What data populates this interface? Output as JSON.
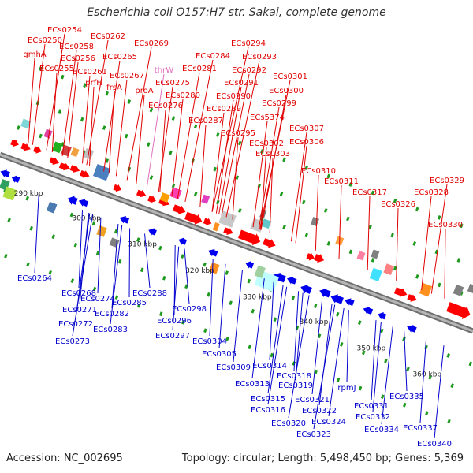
{
  "title": "Escherichia coli O157:H7 str. Sakai, complete genome",
  "footer": {
    "accession": "Accession: NC_002695",
    "summary": "Topology: circular; Length: 5,498,450 bp; Genes: 5,369"
  },
  "colors": {
    "forward_label": "#e00000",
    "reverse_label": "#0000cc",
    "trna_label": "#e070c0",
    "backbone": "#8c8c8c",
    "tick": "#1e9a1e",
    "forward_gene": "#ff0000",
    "reverse_gene": "#0000ee"
  },
  "kbp_ticks": [
    "290 kbp",
    "300 kbp",
    "310 kbp",
    "320 kbp",
    "330 kbp",
    "340 kbp",
    "350 kbp",
    "360 kbp"
  ],
  "forward_labels": [
    "ECs0254",
    "ECs0250",
    "ECs0258",
    "ECs0262",
    "ECs0269",
    "gmhA",
    "ECs0256",
    "ECs0265",
    "ECs0255",
    "ECs0261",
    "ECs0267",
    "thrW",
    "prfH",
    "frsA",
    "proA",
    "ECs0275",
    "ECs0276",
    "ECs0280",
    "ECs0284",
    "ECs0281",
    "ECs0287",
    "ECs0294",
    "ECs0293",
    "ECs0292",
    "ECs0291",
    "ECs0290",
    "ECs0289",
    "ECs0295",
    "ECs0301",
    "ECs0300",
    "ECs0299",
    "ECs5374",
    "ECs0302",
    "ECs0303",
    "ECs0307",
    "ECs0306",
    "ECs0310",
    "ECs0311",
    "ECs0317",
    "ECs0326",
    "ECs0329",
    "ECs0328",
    "ECs0330"
  ],
  "reverse_labels": [
    "ECs0264",
    "ECs0268",
    "ECs0274",
    "ECs0271",
    "ECs0272",
    "ECs0273",
    "ECs0285",
    "ECs0282",
    "ECs0283",
    "ECs0288",
    "ECs0298",
    "ECs0296",
    "ECs0297",
    "ECs0304",
    "ECs0305",
    "ECs0309",
    "ECs0314",
    "ECs0313",
    "ECs0318",
    "ECs0319",
    "ECs0315",
    "ECs0316",
    "ECs0321",
    "ECs0322",
    "ECs0320",
    "ECs0324",
    "ECs0323",
    "rpmJ",
    "ECs0331",
    "ECs0332",
    "ECs0335",
    "ECs0334",
    "ECs0337",
    "ECs0340"
  ]
}
